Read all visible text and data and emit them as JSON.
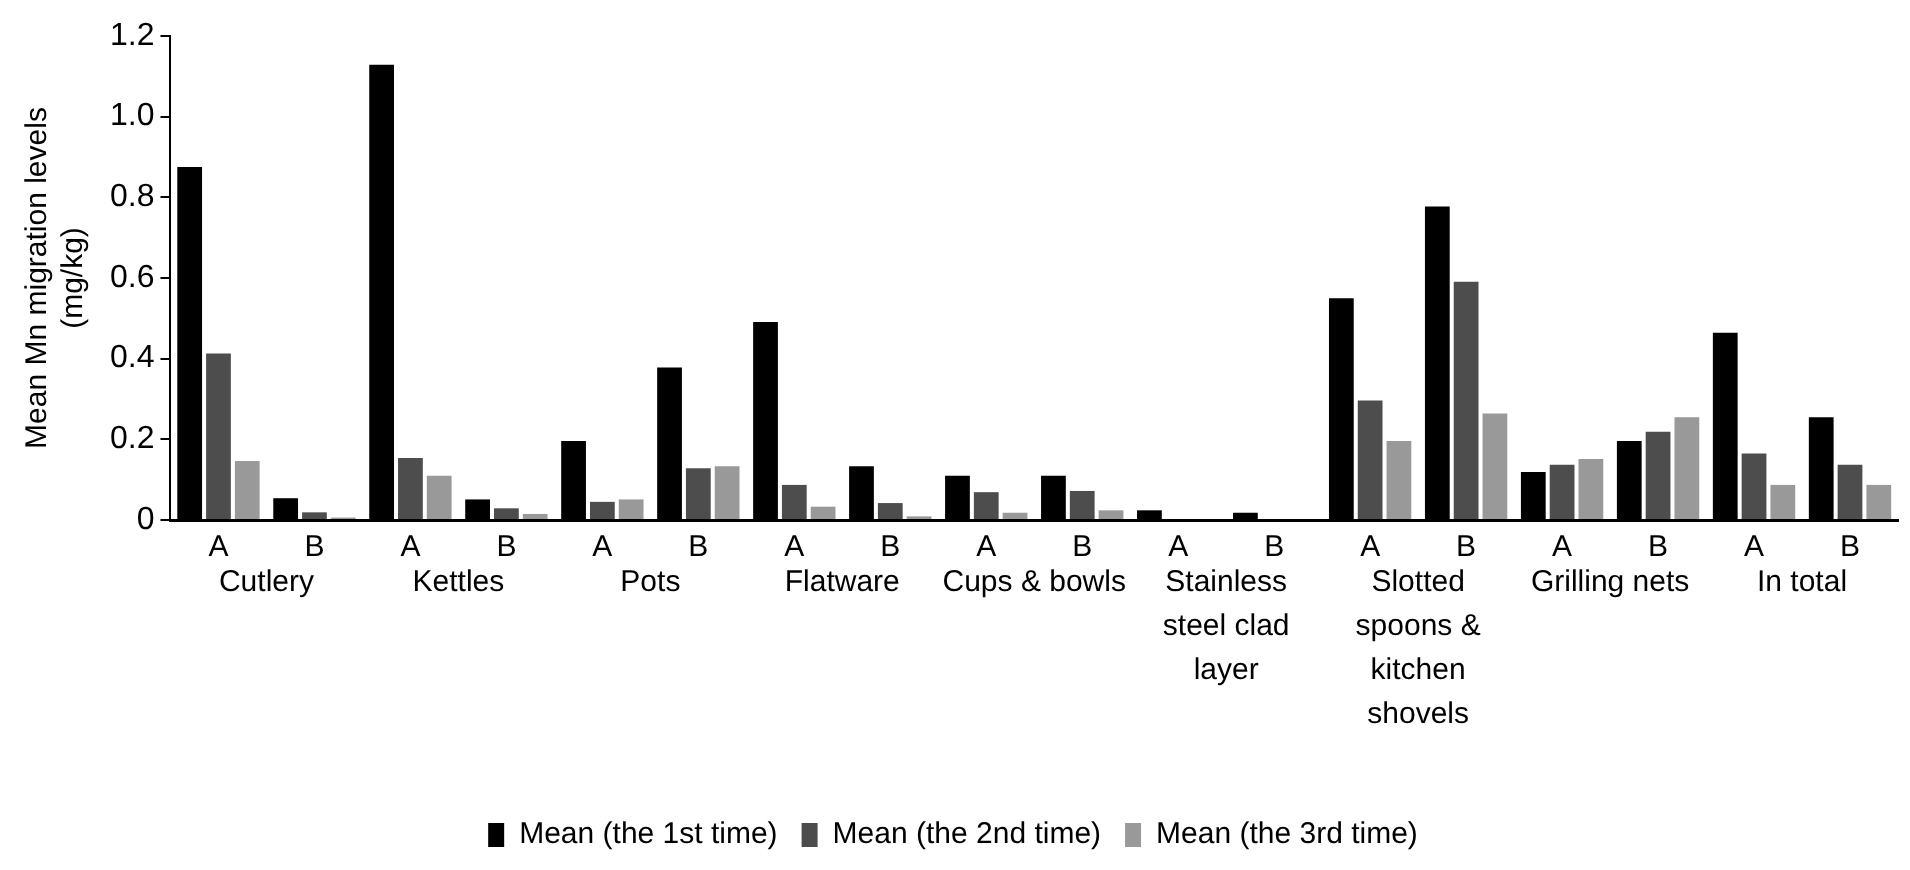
{
  "chart_data": {
    "type": "bar",
    "ylabel": "Mean Mn migration levels\n(mg/kg)",
    "categories": [
      "A",
      "B",
      "A",
      "B",
      "A",
      "B",
      "A",
      "B",
      "A",
      "B",
      "A",
      "B",
      "A",
      "B",
      "A",
      "B",
      "A",
      "B"
    ],
    "series": [
      {
        "name": "Mean (the 1st time)",
        "color": "#000000",
        "values": [
          0.875,
          0.054,
          1.129,
          0.051,
          0.196,
          0.378,
          0.491,
          0.133,
          0.11,
          0.11,
          0.024,
          0.018,
          0.55,
          0.777,
          0.119,
          0.196,
          0.464,
          0.255
        ]
      },
      {
        "name": "Mean (the 2nd time)",
        "color": "#4d4d4d",
        "values": [
          0.413,
          0.019,
          0.154,
          0.029,
          0.045,
          0.128,
          0.087,
          0.042,
          0.069,
          0.072,
          0,
          0,
          0.296,
          0.591,
          0.137,
          0.219,
          0.165,
          0.137
        ]
      },
      {
        "name": "Mean (the 3rd time)",
        "color": "#999999",
        "values": [
          0.146,
          0.006,
          0.11,
          0.015,
          0.051,
          0.133,
          0.033,
          0.009,
          0.018,
          0.024,
          0,
          0,
          0.196,
          0.264,
          0.151,
          0.255,
          0.087,
          0.087
        ]
      }
    ],
    "annotations": [
      "Cutlery",
      "Kettles",
      "Pots",
      "Flatware",
      "Cups & bowls",
      "Stainless steel clad layer",
      "Slotted spoons & kitchen shovels",
      "Grilling nets",
      "In total"
    ],
    "ylim": [
      0,
      1.2
    ],
    "yticks": [
      0,
      0.2,
      0.4,
      0.6,
      0.8,
      {
        "value": 1,
        "label": "1.0"
      },
      1.2
    ],
    "grid": false,
    "legend": "bottom"
  }
}
